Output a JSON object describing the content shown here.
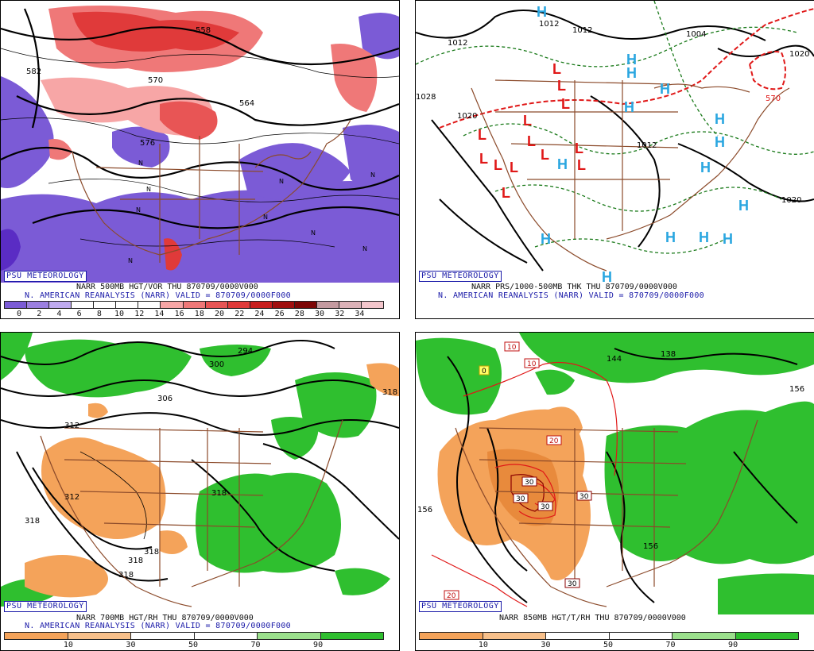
{
  "panels": {
    "tl": {
      "badge": "PSU METEOROLOGY",
      "line1": "NARR 500MB HGT/VOR THU 870709/0000V000",
      "line2": "N. AMERICAN REANALYSIS (NARR) VALID = 870709/0000F000",
      "colorbar": {
        "colors": [
          "#7b5bd6",
          "#9b7fe0",
          "#bfaaf0",
          "#ffffff",
          "#ffffff",
          "#ffffff",
          "#ffffff",
          "#f7a6a6",
          "#ef7878",
          "#e85555",
          "#e03a3a",
          "#c81e1e",
          "#a00f0f",
          "#7d0606",
          "#c49aa0",
          "#dcb2b8",
          "#f4c6cc"
        ],
        "ticks": [
          "0",
          "2",
          "4",
          "6",
          "8",
          "10",
          "12",
          "14",
          "16",
          "18",
          "20",
          "22",
          "24",
          "26",
          "28",
          "30",
          "32",
          "34"
        ]
      },
      "contour_labels": [
        "558",
        "570",
        "582",
        "564",
        "576"
      ]
    },
    "tr": {
      "badge": "PSU METEOROLOGY",
      "line1": "NARR PRS/1000-500MB THK THU 870709/0000V000",
      "line2": "N. AMERICAN REANALYSIS (NARR) VALID = 870709/0000F000",
      "contour_labels": [
        "1012",
        "1012",
        "1004",
        "1020",
        "570",
        "1020",
        "1012",
        "1012",
        "1020",
        "1028"
      ],
      "low_marker": "L",
      "high_marker": "H"
    },
    "bl": {
      "badge": "PSU METEOROLOGY",
      "line1": "NARR 700MB HGT/RH THU 870709/0000V000",
      "line2": "N. AMERICAN REANALYSIS (NARR) VALID = 870709/0000F000",
      "colorbar": {
        "colors": [
          "#f4a35a",
          "#f8c08a",
          "#ffffff",
          "#ffffff",
          "#9be08c",
          "#2fbf2f"
        ],
        "ticks": [
          "10",
          "30",
          "50",
          "70",
          "90"
        ]
      },
      "contour_labels": [
        "294",
        "300",
        "306",
        "312",
        "318",
        "318",
        "312",
        "318",
        "318",
        "318",
        "318"
      ]
    },
    "br": {
      "badge": "PSU METEOROLOGY",
      "line1": "NARR 850MB HGT/T/RH THU 870709/0000V000",
      "colorbar": {
        "colors": [
          "#f4a35a",
          "#f8c08a",
          "#ffffff",
          "#ffffff",
          "#9be08c",
          "#2fbf2f"
        ],
        "ticks": [
          "10",
          "30",
          "50",
          "70",
          "90"
        ]
      },
      "contour_labels": [
        "144",
        "138",
        "156",
        "156",
        "156"
      ],
      "temp_labels": [
        "10",
        "10",
        "20",
        "20",
        "30",
        "30",
        "30",
        "30",
        "30",
        "0"
      ]
    }
  }
}
